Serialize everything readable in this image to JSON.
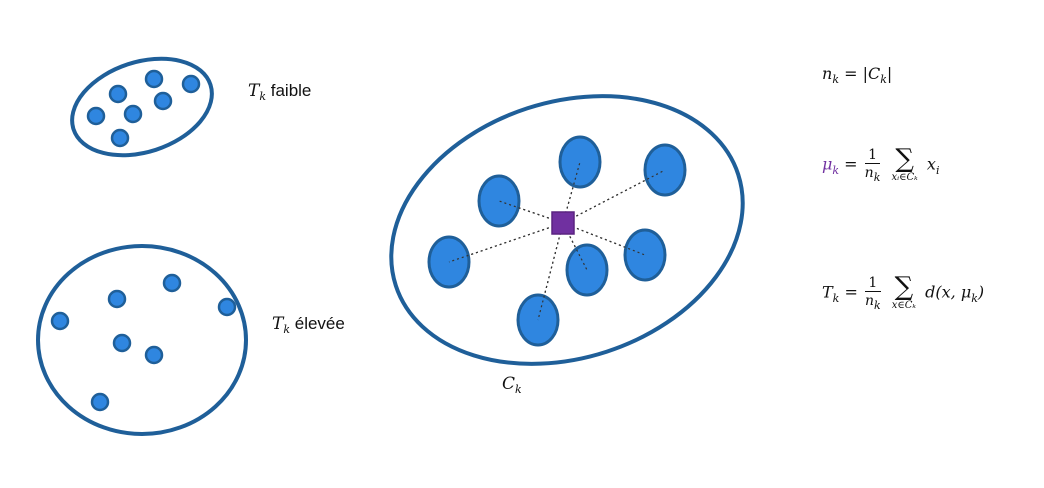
{
  "colors": {
    "stroke": "#1f5f99",
    "fill": "#2f86e0",
    "centroid": "#7030a0",
    "mu_text": "#7030a0"
  },
  "labels": {
    "low_T": {
      "var": "T",
      "sub": "k",
      "text": "faible"
    },
    "high_T": {
      "var": "T",
      "sub": "k",
      "text": "élevée"
    },
    "cluster": {
      "var": "C",
      "sub": "k"
    }
  },
  "formulas": {
    "n": {
      "lhs": "n",
      "lhs_sub": "k",
      "rhs": "= |C",
      "rhs_sub": "k",
      "close": "|"
    },
    "mu": {
      "lhs": "μ",
      "lhs_sub": "k",
      "eq": "=",
      "num": "1",
      "den": "n",
      "den_sub": "k",
      "sum_under": "xᵢ∈Cₖ",
      "term": "x",
      "term_sub": "i"
    },
    "T": {
      "lhs": "T",
      "lhs_sub": "k",
      "eq": "=",
      "num": "1",
      "den": "n",
      "den_sub": "k",
      "sum_under": "x∈Cₖ",
      "term": "d(x, μ",
      "term_sub": "k",
      "term_close": ")"
    }
  },
  "icons": [
    "small-cluster-ellipse",
    "sparse-cluster-ellipse",
    "main-cluster-ellipse",
    "centroid-square"
  ]
}
